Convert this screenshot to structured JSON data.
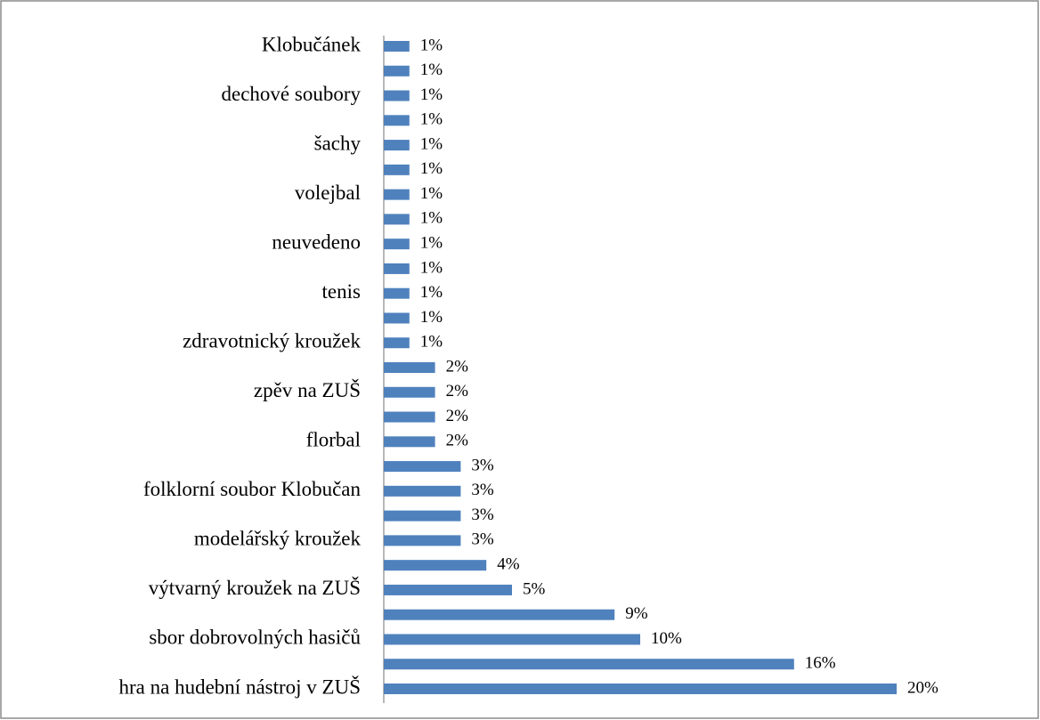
{
  "chart_data": {
    "type": "bar",
    "orientation": "horizontal",
    "color": "#4f81bd",
    "categories": [
      "Klobučánek",
      null,
      "dechové soubory",
      null,
      "šachy",
      null,
      "volejbal",
      null,
      "neuvedeno",
      null,
      "tenis",
      null,
      "zdravotnický kroužek",
      null,
      "zpěv na ZUŠ",
      null,
      "florbal",
      null,
      "folklorní soubor Klobučan",
      null,
      "modelářský kroužek",
      null,
      "výtvarný kroužek na ZUŠ",
      null,
      "sbor dobrovolných hasičů",
      null,
      "hra na hudební nástroj v ZUŠ"
    ],
    "values": [
      1,
      1,
      1,
      1,
      1,
      1,
      1,
      1,
      1,
      1,
      1,
      1,
      1,
      2,
      2,
      2,
      2,
      3,
      3,
      3,
      3,
      4,
      5,
      9,
      10,
      16,
      20
    ],
    "value_labels": [
      "1%",
      "1%",
      "1%",
      "1%",
      "1%",
      "1%",
      "1%",
      "1%",
      "1%",
      "1%",
      "1%",
      "1%",
      "1%",
      "2%",
      "2%",
      "2%",
      "2%",
      "3%",
      "3%",
      "3%",
      "3%",
      "4%",
      "5%",
      "9%",
      "10%",
      "16%",
      "20%"
    ]
  }
}
